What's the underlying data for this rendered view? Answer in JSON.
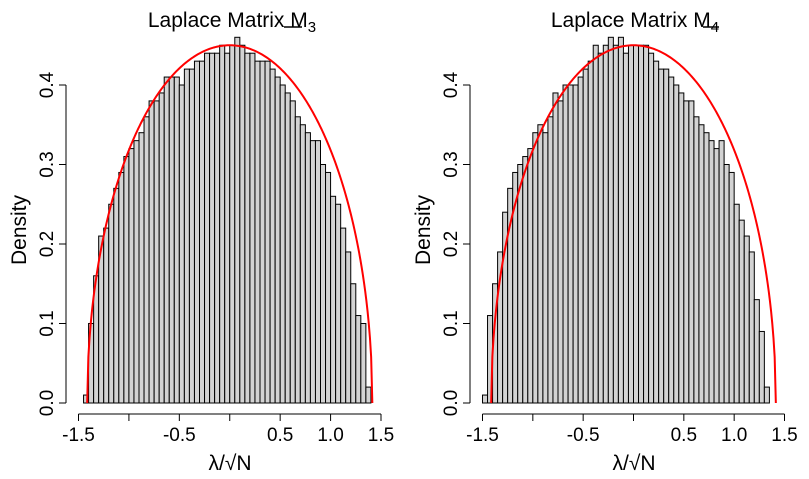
{
  "chart_data": [
    {
      "type": "bar",
      "subtype": "histogram",
      "title": "Laplace Matrix M",
      "title_subscript": "3",
      "xlabel": "λ/√N",
      "ylabel": "Density",
      "xlim": [
        -1.5,
        1.5
      ],
      "ylim": [
        0,
        0.45
      ],
      "x_ticks": [
        -1.5,
        -1.0,
        -0.5,
        0.0,
        0.5,
        1.0,
        1.5
      ],
      "x_tick_labels": [
        "-1.5",
        "",
        "-0.5",
        "",
        "0.5",
        "1.0",
        "1.5"
      ],
      "y_ticks": [
        0.0,
        0.1,
        0.2,
        0.3,
        0.4
      ],
      "y_tick_labels": [
        "0.0",
        "0.1",
        "0.2",
        "0.3",
        "0.4"
      ],
      "bin_start": -1.45,
      "bin_width": 0.05,
      "values": [
        0.01,
        0.1,
        0.16,
        0.21,
        0.22,
        0.25,
        0.27,
        0.29,
        0.31,
        0.32,
        0.33,
        0.34,
        0.36,
        0.38,
        0.38,
        0.39,
        0.41,
        0.41,
        0.41,
        0.4,
        0.42,
        0.42,
        0.43,
        0.43,
        0.44,
        0.44,
        0.44,
        0.45,
        0.44,
        0.45,
        0.46,
        0.45,
        0.44,
        0.44,
        0.43,
        0.43,
        0.43,
        0.42,
        0.41,
        0.4,
        0.39,
        0.38,
        0.36,
        0.35,
        0.34,
        0.33,
        0.33,
        0.3,
        0.29,
        0.26,
        0.25,
        0.22,
        0.19,
        0.15,
        0.11,
        0.1,
        0.02
      ],
      "curve": {
        "type": "semicircle",
        "radius": 1.414,
        "peak": 0.45,
        "color": "#ff0000"
      },
      "bar_fill": "#d3d3d3",
      "bar_stroke": "#000000",
      "grid": false
    },
    {
      "type": "bar",
      "subtype": "histogram",
      "title": "Laplace Matrix M",
      "title_subscript": "4",
      "xlabel": "λ/√N",
      "ylabel": "Density",
      "xlim": [
        -1.5,
        1.5
      ],
      "ylim": [
        0,
        0.45
      ],
      "x_ticks": [
        -1.5,
        -1.0,
        -0.5,
        0.0,
        0.5,
        1.0,
        1.5
      ],
      "x_tick_labels": [
        "-1.5",
        "",
        "-0.5",
        "",
        "0.5",
        "1.0",
        "1.5"
      ],
      "y_ticks": [
        0.0,
        0.1,
        0.2,
        0.3,
        0.4
      ],
      "y_tick_labels": [
        "0.0",
        "0.1",
        "0.2",
        "0.3",
        "0.4"
      ],
      "bin_start": -1.5,
      "bin_width": 0.05,
      "values": [
        0.01,
        0.11,
        0.15,
        0.19,
        0.24,
        0.27,
        0.29,
        0.3,
        0.31,
        0.32,
        0.34,
        0.35,
        0.34,
        0.36,
        0.39,
        0.38,
        0.4,
        0.4,
        0.4,
        0.41,
        0.42,
        0.43,
        0.45,
        0.44,
        0.45,
        0.46,
        0.45,
        0.46,
        0.44,
        0.45,
        0.45,
        0.45,
        0.45,
        0.44,
        0.43,
        0.42,
        0.42,
        0.41,
        0.4,
        0.39,
        0.38,
        0.38,
        0.36,
        0.35,
        0.34,
        0.33,
        0.32,
        0.33,
        0.3,
        0.29,
        0.25,
        0.23,
        0.21,
        0.19,
        0.13,
        0.09,
        0.02
      ],
      "curve": {
        "type": "semicircle",
        "radius": 1.414,
        "peak": 0.45,
        "color": "#ff0000"
      },
      "bar_fill": "#d3d3d3",
      "bar_stroke": "#000000",
      "grid": false
    }
  ]
}
